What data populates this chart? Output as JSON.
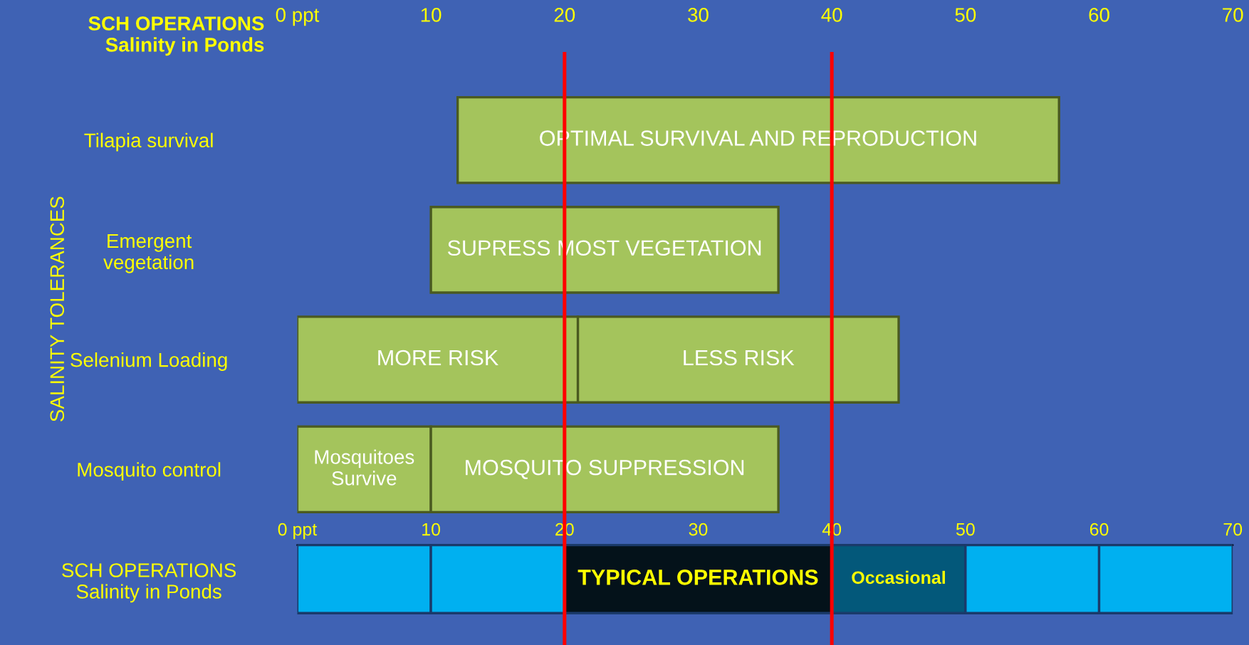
{
  "chart_data": {
    "type": "bar",
    "orientation": "horizontal",
    "xlabel": "SCH OPERATIONS\nSalinity in Ponds",
    "ylabel": "SALINITY TOLERANCES",
    "categories": [
      "Tilapia survival",
      "Emergent\nvegetation",
      "Selenium Loading",
      "Mosquito control",
      "SCH OPERATIONS\nSalinity in Ponds"
    ],
    "xlim": [
      0,
      70
    ],
    "xticks": [
      {
        "value": 0,
        "label": "0 ppt"
      },
      10,
      20,
      30,
      40,
      50,
      60,
      70
    ],
    "x2lim": [
      0,
      70
    ],
    "x2ticks": [
      {
        "value": 0,
        "label": "0 ppt"
      },
      10,
      20,
      30,
      40,
      50,
      60,
      70
    ],
    "series": [
      {
        "color": "#a4c45c",
        "values": [
          45,
          26,
          21,
          10,
          null
        ],
        "base": [
          12,
          10,
          0,
          0,
          null
        ],
        "value_labels": [
          "OPTIMAL SURVIVAL AND REPRODUCTION",
          "SUPRESS MOST VEGETATION",
          "MORE RISK",
          "Mosquitoes\nSurvive",
          null
        ]
      },
      {
        "color": "#a4c45c",
        "values": [
          null,
          null,
          24,
          26,
          null
        ],
        "base": [
          null,
          null,
          21,
          10,
          null
        ],
        "value_labels": [
          null,
          null,
          "LESS RISK",
          "MOSQUITO SUPPRESSION",
          null
        ]
      },
      {
        "color": "#00b0f0",
        "values": [
          null,
          null,
          null,
          null,
          10
        ],
        "base": [
          null,
          null,
          null,
          null,
          0
        ]
      },
      {
        "color": "#00b0f0",
        "values": [
          null,
          null,
          null,
          null,
          10
        ],
        "base": [
          null,
          null,
          null,
          null,
          10
        ]
      },
      {
        "color": "#04121a",
        "values": [
          null,
          null,
          null,
          null,
          20
        ],
        "base": [
          null,
          null,
          null,
          null,
          20
        ],
        "value_labels": [
          null,
          null,
          null,
          null,
          "TYPICAL OPERATIONS"
        ]
      },
      {
        "color": "#03587a",
        "values": [
          null,
          null,
          null,
          null,
          10
        ],
        "base": [
          null,
          null,
          null,
          null,
          40
        ],
        "value_labels": [
          null,
          null,
          null,
          null,
          "Occasional"
        ]
      },
      {
        "color": "#00b0f0",
        "values": [
          null,
          null,
          null,
          null,
          10
        ],
        "base": [
          null,
          null,
          null,
          null,
          50
        ]
      },
      {
        "color": "#00b0f0",
        "values": [
          null,
          null,
          null,
          null,
          10
        ],
        "base": [
          null,
          null,
          null,
          null,
          60
        ]
      }
    ],
    "ref_lines": [
      {
        "axis": "x",
        "value": 20,
        "color": "#ff0000"
      },
      {
        "axis": "x",
        "value": 40,
        "color": "#ff0000"
      }
    ],
    "grid": false,
    "legend": false
  }
}
